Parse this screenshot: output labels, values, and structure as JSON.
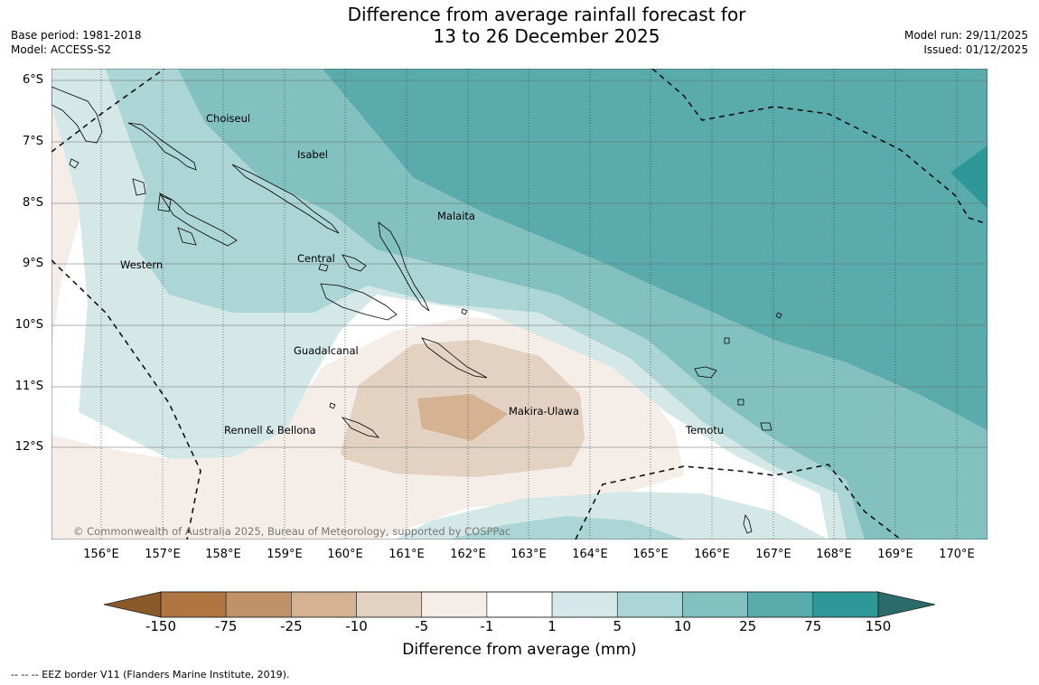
{
  "title": {
    "line1": "Difference from average rainfall forecast for",
    "line2": "13 to 26 December 2025"
  },
  "meta_left": {
    "base_period": "Base period: 1981-2018",
    "model": "Model: ACCESS-S2"
  },
  "meta_right": {
    "model_run": "Model run: 29/11/2025",
    "issued": "Issued: 01/12/2025"
  },
  "map": {
    "lat_labels": [
      "6°S",
      "7°S",
      "8°S",
      "9°S",
      "10°S",
      "11°S",
      "12°S"
    ],
    "lon_labels": [
      "156°E",
      "157°E",
      "158°E",
      "159°E",
      "160°E",
      "161°E",
      "162°E",
      "163°E",
      "164°E",
      "165°E",
      "166°E",
      "167°E",
      "168°E",
      "169°E",
      "170°E"
    ],
    "regions": [
      "Choiseul",
      "Isabel",
      "Malaita",
      "Western",
      "Central",
      "Guadalcanal",
      "Makira-Ulawa",
      "Rennell & Bellona",
      "Temotu"
    ],
    "copyright": "© Commonwealth of Australia 2025, Bureau of Meteorology, supported by COSPPac"
  },
  "colorbar": {
    "ticks": [
      "-150",
      "-75",
      "-25",
      "-10",
      "-5",
      "-1",
      "1",
      "5",
      "10",
      "25",
      "75",
      "150"
    ],
    "colors": [
      "#8b5a2b",
      "#ae7541",
      "#c19267",
      "#d5b291",
      "#e3d2c2",
      "#f4ede8",
      "#ffffff",
      "#d5e8e8",
      "#acd5d5",
      "#83c1c1",
      "#5aabab",
      "#2e9898",
      "#2b6b6b"
    ],
    "title": "Difference from average (mm)"
  },
  "footnote": "--  --  -- EEZ border V11 (Flanders Marine Institute, 2019)."
}
